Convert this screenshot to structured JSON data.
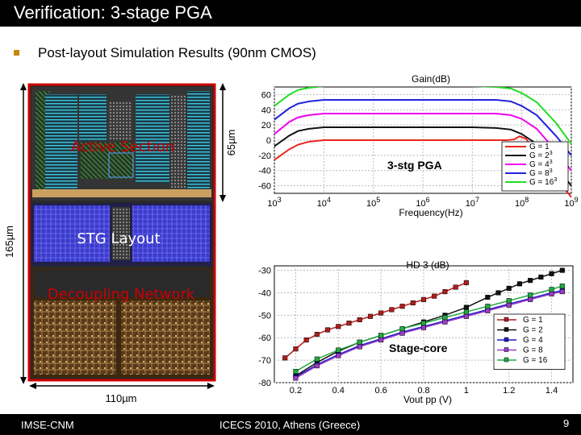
{
  "slide": {
    "title": "Verification: 3-stage PGA",
    "bullet": "Post-layout Simulation Results (90nm CMOS)",
    "footer_left": "IMSE-CNM",
    "footer_center": "ICECS 2010, Athens (Greece)",
    "page_number": "9"
  },
  "layout": {
    "height_label": "165µm",
    "section_height_label": "65µm",
    "width_label": "110µm",
    "active_section": "Active Section",
    "stg_layout": "STG Layout",
    "decoupling": "Decoupling Network",
    "colors": {
      "frame": "#cc0000",
      "label": "#cc0000",
      "stg_label": "#ffffff"
    }
  },
  "chart_data": [
    {
      "type": "line",
      "title": "Gain(dB)",
      "xlabel": "Frequency(Hz)",
      "annotation": "3-stg PGA",
      "xscale": "log",
      "xlim": [
        1000,
        1000000000
      ],
      "x_tick_labels": [
        "10 3",
        "10 4",
        "10 5",
        "10 6",
        "10 7",
        "10 8",
        "10 9"
      ],
      "ylim": [
        -70,
        70
      ],
      "y_ticks": [
        60,
        40,
        20,
        0,
        -20,
        -40,
        -60
      ],
      "legend_position": "bottom-right",
      "grid": true,
      "series": [
        {
          "name": "G = 1",
          "color": "#e8261e",
          "x": [
            1000,
            2000,
            3000,
            5000,
            10000,
            30000,
            100000,
            1000000,
            10000000,
            30000000,
            50000000,
            70000000,
            90000000,
            120000000,
            200000000,
            500000000,
            1000000000
          ],
          "y": [
            -26,
            -12,
            -6,
            -2,
            0,
            0,
            0,
            0,
            0,
            0,
            0,
            1,
            5,
            2,
            -15,
            -50,
            -75
          ]
        },
        {
          "name": "G = 2^3",
          "color": "#111111",
          "x": [
            1000,
            2000,
            3000,
            5000,
            10000,
            30000,
            100000,
            1000000,
            10000000,
            30000000,
            60000000,
            100000000,
            200000000,
            500000000,
            1000000000
          ],
          "y": [
            -8,
            6,
            12,
            15,
            17,
            17,
            17,
            17,
            17,
            16,
            14,
            8,
            -5,
            -35,
            -60
          ]
        },
        {
          "name": "G = 4^3",
          "color": "#ee00ee",
          "x": [
            1000,
            2000,
            3000,
            5000,
            10000,
            30000,
            100000,
            1000000,
            10000000,
            30000000,
            60000000,
            100000000,
            200000000,
            500000000,
            1000000000
          ],
          "y": [
            8,
            24,
            30,
            33,
            35,
            35,
            35,
            35,
            35,
            35,
            33,
            28,
            15,
            -15,
            -40
          ]
        },
        {
          "name": "G = 8^3",
          "color": "#2222dd",
          "x": [
            1000,
            2000,
            3000,
            5000,
            10000,
            30000,
            100000,
            1000000,
            10000000,
            30000000,
            60000000,
            100000000,
            200000000,
            500000000,
            1000000000
          ],
          "y": [
            27,
            42,
            48,
            51,
            53,
            53,
            53,
            53,
            53,
            53,
            51,
            45,
            33,
            5,
            -20
          ]
        },
        {
          "name": "G = 16^3",
          "color": "#22dd22",
          "x": [
            1000,
            2000,
            3000,
            5000,
            10000,
            30000,
            100000,
            1000000,
            10000000,
            30000000,
            60000000,
            100000000,
            200000000,
            500000000,
            1000000000
          ],
          "y": [
            45,
            60,
            66,
            69,
            71,
            71,
            71,
            71,
            71,
            70,
            68,
            62,
            50,
            22,
            -5
          ]
        }
      ]
    },
    {
      "type": "line",
      "title": "HD 3 (dB)",
      "xlabel": "Vout pp (V)",
      "annotation": "Stage-core",
      "xlim": [
        0.1,
        1.5
      ],
      "x_ticks": [
        0.2,
        0.4,
        0.6,
        0.8,
        1,
        1.2,
        1.4
      ],
      "ylim": [
        -80,
        -28
      ],
      "y_ticks": [
        -30,
        -40,
        -50,
        -60,
        -70,
        -80
      ],
      "legend_position": "bottom-right",
      "grid": true,
      "series": [
        {
          "name": "G = 1",
          "color": "#b01c1c",
          "x": [
            0.15,
            0.2,
            0.25,
            0.3,
            0.35,
            0.4,
            0.45,
            0.5,
            0.55,
            0.6,
            0.65,
            0.7,
            0.75,
            0.8,
            0.85,
            0.9,
            0.95,
            1.0
          ],
          "y": [
            -69,
            -65,
            -61,
            -58.5,
            -56.5,
            -55,
            -53.5,
            -52,
            -50.5,
            -49,
            -47.5,
            -46,
            -44.5,
            -43,
            -41.5,
            -39.5,
            -37.5,
            -35.5
          ]
        },
        {
          "name": "G = 2",
          "color": "#111111",
          "x": [
            0.2,
            0.3,
            0.4,
            0.5,
            0.6,
            0.7,
            0.8,
            0.9,
            1.0,
            1.1,
            1.15,
            1.2,
            1.25,
            1.3,
            1.35,
            1.4,
            1.45
          ],
          "y": [
            -77,
            -71,
            -66,
            -62,
            -59,
            -56,
            -53,
            -50,
            -46.5,
            -42,
            -40,
            -38,
            -36,
            -34.5,
            -33,
            -31.5,
            -30
          ]
        },
        {
          "name": "G = 4",
          "color": "#1c1cc8",
          "x": [
            0.2,
            0.3,
            0.4,
            0.5,
            0.6,
            0.7,
            0.8,
            0.9,
            1.0,
            1.1,
            1.2,
            1.3,
            1.4,
            1.45
          ],
          "y": [
            -77.5,
            -72,
            -67.5,
            -63.5,
            -60.5,
            -57.5,
            -55,
            -52.5,
            -50,
            -47.5,
            -45,
            -42.5,
            -40,
            -39
          ]
        },
        {
          "name": "G = 8",
          "color": "#9a3cc8",
          "x": [
            0.2,
            0.3,
            0.4,
            0.5,
            0.6,
            0.7,
            0.8,
            0.9,
            1.0,
            1.1,
            1.2,
            1.3,
            1.4,
            1.45
          ],
          "y": [
            -78,
            -72.5,
            -68,
            -64,
            -61,
            -58,
            -55.5,
            -53,
            -50.5,
            -48,
            -45.5,
            -43,
            -40.5,
            -39.5
          ]
        },
        {
          "name": "G = 16",
          "color": "#22aa44",
          "x": [
            0.2,
            0.3,
            0.4,
            0.5,
            0.6,
            0.7,
            0.8,
            0.9,
            1.0,
            1.1,
            1.2,
            1.3,
            1.4,
            1.45
          ],
          "y": [
            -75,
            -69.5,
            -65.5,
            -62,
            -59,
            -56,
            -53.5,
            -51,
            -48.5,
            -46,
            -43.5,
            -41,
            -38.5,
            -37
          ]
        }
      ]
    }
  ]
}
